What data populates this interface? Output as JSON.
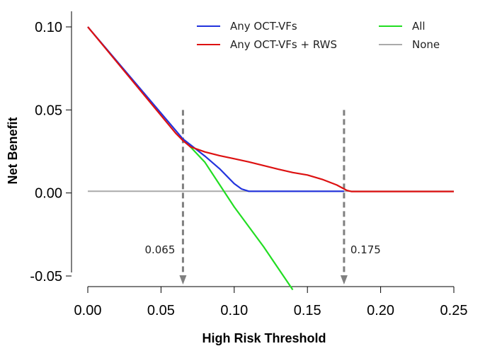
{
  "chart_data": {
    "type": "line",
    "xlabel": "High Risk Threshold",
    "ylabel": "Net Benefit",
    "xlim": [
      0.0,
      0.25
    ],
    "ylim": [
      -0.058,
      0.108
    ],
    "x_ticks": [
      "0.00",
      "0.05",
      "0.10",
      "0.15",
      "0.20",
      "0.25"
    ],
    "y_ticks": [
      "0.10",
      "0.05",
      "0.00",
      "-0.05"
    ],
    "x_tick_values": [
      0.0,
      0.05,
      0.1,
      0.15,
      0.2,
      0.25
    ],
    "y_tick_values": [
      0.1,
      0.05,
      0.0,
      -0.05
    ],
    "grid": false,
    "legend_position": "top",
    "series": [
      {
        "name": "Any OCT-VFs",
        "color": "#2233dd",
        "x": [
          0.0,
          0.065,
          0.08,
          0.09,
          0.1,
          0.105,
          0.11,
          0.12,
          0.15,
          0.175
        ],
        "y": [
          0.1,
          0.0325,
          0.0222,
          0.0146,
          0.0056,
          0.0024,
          0.001,
          0.001,
          0.001,
          0.001
        ]
      },
      {
        "name": "Any OCT-VFs + RWS",
        "color": "#dd1111",
        "x": [
          0.0,
          0.06,
          0.065,
          0.07,
          0.08,
          0.09,
          0.1,
          0.11,
          0.12,
          0.13,
          0.14,
          0.15,
          0.16,
          0.17,
          0.177,
          0.18,
          0.2,
          0.22,
          0.25
        ],
        "y": [
          0.1,
          0.036,
          0.0315,
          0.0278,
          0.0247,
          0.0225,
          0.0206,
          0.0187,
          0.0165,
          0.0143,
          0.0123,
          0.0108,
          0.0082,
          0.0048,
          0.0015,
          0.0009,
          0.0009,
          0.0009,
          0.0009
        ]
      },
      {
        "name": "All",
        "color": "#22dd22",
        "x": [
          0.065,
          0.08,
          0.1,
          0.12,
          0.14
        ],
        "y": [
          0.0325,
          0.0185,
          -0.0084,
          -0.0323,
          -0.0583
        ]
      },
      {
        "name": "None",
        "color": "#aaaaaa",
        "x": [
          0.0,
          0.25
        ],
        "y": [
          0.001,
          0.001
        ]
      }
    ],
    "annotations": [
      {
        "label": "0.065",
        "x": 0.065,
        "y_top": 0.05,
        "side": "left"
      },
      {
        "label": "0.175",
        "x": 0.175,
        "y_top": 0.05,
        "side": "right"
      }
    ],
    "annotation_color": "#808080"
  }
}
